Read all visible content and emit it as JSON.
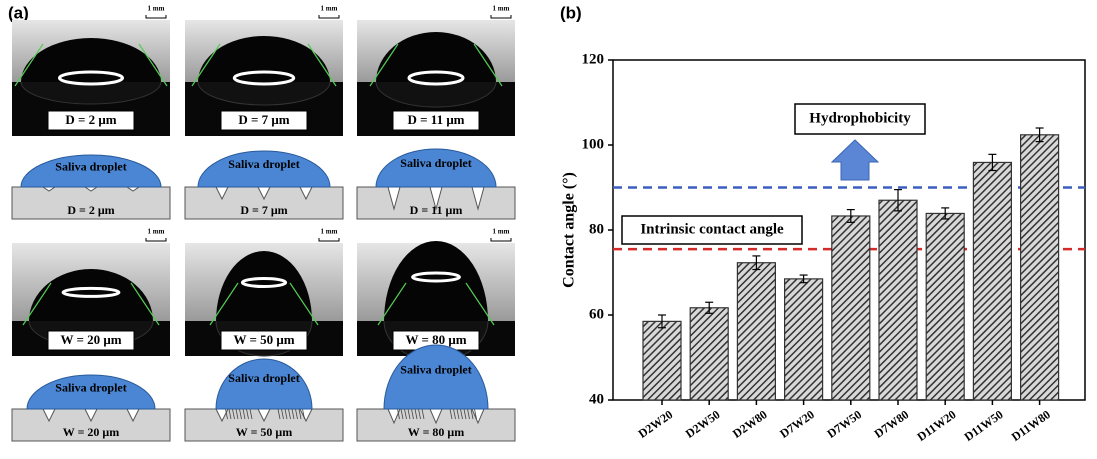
{
  "panel_a": {
    "label": "(a)",
    "photos": [
      {
        "caption": "D = 2 μm",
        "scale_bar": "1 mm"
      },
      {
        "caption": "D = 7 μm",
        "scale_bar": "1 mm"
      },
      {
        "caption": "D = 11 μm",
        "scale_bar": "1 mm"
      },
      {
        "caption": "W = 20 μm",
        "scale_bar": "1 mm"
      },
      {
        "caption": "W = 50 μm",
        "scale_bar": "1 mm"
      },
      {
        "caption": "W = 80 μm",
        "scale_bar": "1 mm"
      }
    ],
    "diagrams": [
      {
        "droplet": "Saliva droplet",
        "caption": "D = 2 μm"
      },
      {
        "droplet": "Saliva droplet",
        "caption": "D = 7 μm"
      },
      {
        "droplet": "Saliva droplet",
        "caption": "D = 11 μm"
      },
      {
        "droplet": "Saliva droplet",
        "caption": "W = 20 μm"
      },
      {
        "droplet": "Saliva droplet",
        "caption": "W = 50 μm"
      },
      {
        "droplet": "Saliva droplet",
        "caption": "W = 80 μm"
      }
    ]
  },
  "chart_data": {
    "type": "bar",
    "panel_label": "(b)",
    "y_label": "Contact angle (°)",
    "categories": [
      "D2W20",
      "D2W50",
      "D2W80",
      "D7W20",
      "D7W50",
      "D7W80",
      "D11W20",
      "D11W50",
      "D11W80"
    ],
    "values": [
      58.5,
      61.7,
      72.3,
      68.5,
      83.3,
      87.0,
      83.9,
      95.9,
      102.4
    ],
    "errors": [
      1.5,
      1.3,
      1.6,
      0.9,
      1.5,
      2.5,
      1.3,
      1.9,
      1.6
    ],
    "color": "#333333",
    "ylim": [
      40,
      120
    ],
    "yticks": [
      40,
      60,
      80,
      100,
      120
    ],
    "reference_lines": [
      {
        "value": 90,
        "color": "#3b5fc0"
      },
      {
        "value": 75.5,
        "color": "#d42a2a"
      }
    ],
    "annotations": [
      "Hydrophobicity",
      "Intrinsic contact angle"
    ]
  }
}
